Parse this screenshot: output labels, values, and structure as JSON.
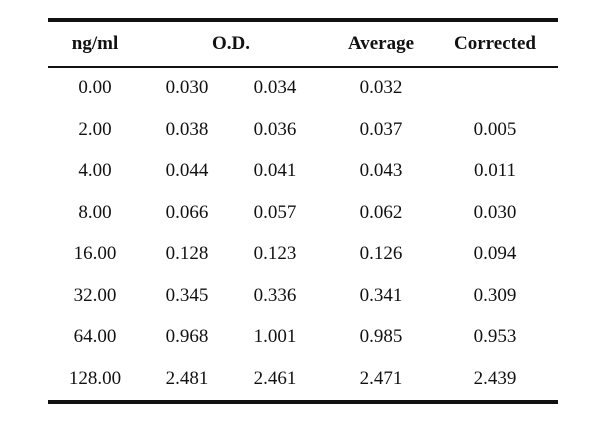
{
  "table": {
    "headers": {
      "conc": "ng/ml",
      "od": "O.D.",
      "average": "Average",
      "corrected": "Corrected"
    },
    "rows": [
      {
        "conc": "0.00",
        "od1": "0.030",
        "od2": "0.034",
        "average": "0.032",
        "corrected": ""
      },
      {
        "conc": "2.00",
        "od1": "0.038",
        "od2": "0.036",
        "average": "0.037",
        "corrected": "0.005"
      },
      {
        "conc": "4.00",
        "od1": "0.044",
        "od2": "0.041",
        "average": "0.043",
        "corrected": "0.011"
      },
      {
        "conc": "8.00",
        "od1": "0.066",
        "od2": "0.057",
        "average": "0.062",
        "corrected": "0.030"
      },
      {
        "conc": "16.00",
        "od1": "0.128",
        "od2": "0.123",
        "average": "0.126",
        "corrected": "0.094"
      },
      {
        "conc": "32.00",
        "od1": "0.345",
        "od2": "0.336",
        "average": "0.341",
        "corrected": "0.309"
      },
      {
        "conc": "64.00",
        "od1": "0.968",
        "od2": "1.001",
        "average": "0.985",
        "corrected": "0.953"
      },
      {
        "conc": "128.00",
        "od1": "2.481",
        "od2": "2.461",
        "average": "2.471",
        "corrected": "2.439"
      }
    ]
  }
}
